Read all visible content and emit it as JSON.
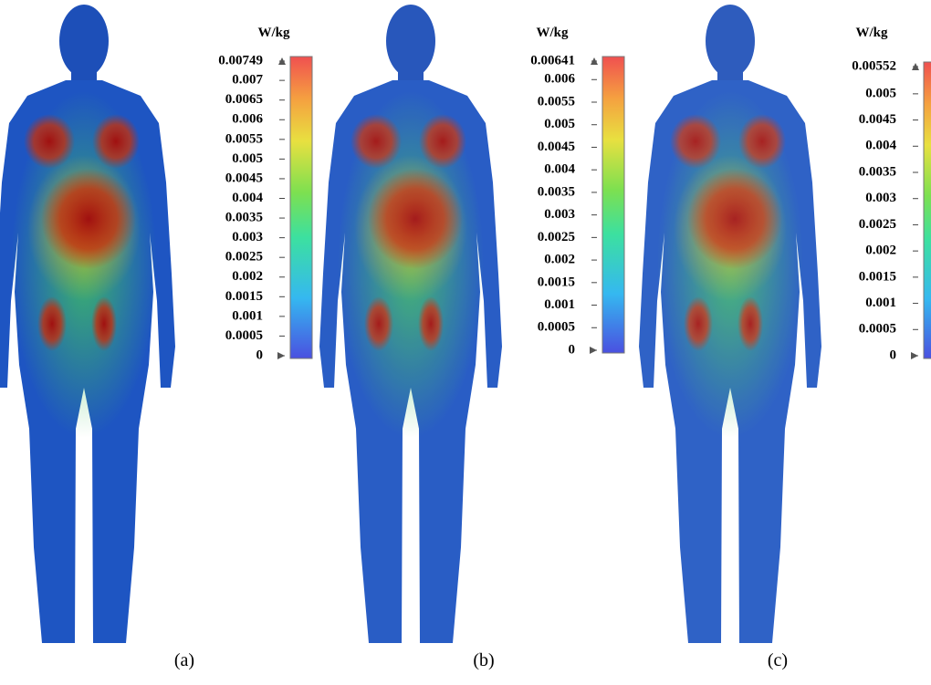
{
  "panels": [
    {
      "unit": "W/kg",
      "ticks": [
        0.00749,
        0.007,
        0.0065,
        0.006,
        0.0055,
        0.005,
        0.0045,
        0.004,
        0.0035,
        0.003,
        0.0025,
        0.002,
        0.0015,
        0.001,
        0.0005,
        0
      ],
      "caption": "(a)"
    },
    {
      "unit": "W/kg",
      "ticks": [
        0.00641,
        0.006,
        0.0055,
        0.005,
        0.0045,
        0.004,
        0.0035,
        0.003,
        0.0025,
        0.002,
        0.0015,
        0.001,
        0.0005,
        0
      ],
      "caption": "(b)"
    },
    {
      "unit": "W/kg",
      "ticks": [
        0.00552,
        0.005,
        0.0045,
        0.004,
        0.0035,
        0.003,
        0.0025,
        0.002,
        0.0015,
        0.001,
        0.0005,
        0
      ],
      "caption": "(c)"
    }
  ]
}
